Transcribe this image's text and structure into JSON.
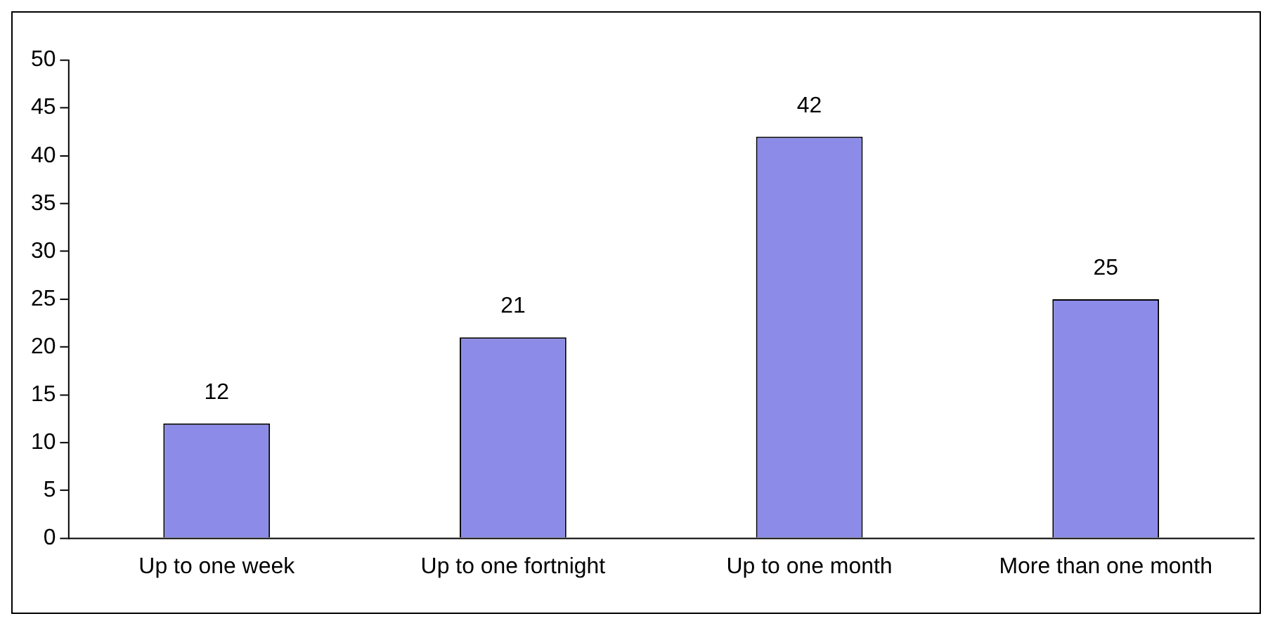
{
  "chart_data": {
    "type": "bar",
    "categories": [
      "Up to one week",
      "Up to one fortnight",
      "Up to one month",
      "More than one month"
    ],
    "values": [
      12,
      21,
      42,
      25
    ],
    "color": "#8c8ce8",
    "ylim": [
      0,
      50
    ],
    "yticks": [
      0,
      5,
      10,
      15,
      20,
      25,
      30,
      35,
      40,
      45,
      50
    ],
    "grid": false,
    "data_labels": true,
    "legend": false
  }
}
